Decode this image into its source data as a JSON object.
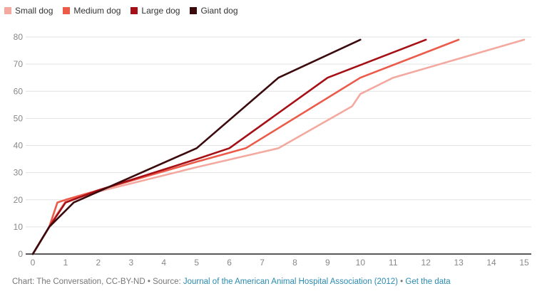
{
  "chart_data": {
    "type": "line",
    "title": "",
    "xlabel": "",
    "ylabel": "",
    "xlim": [
      0,
      15
    ],
    "ylim": [
      0,
      80
    ],
    "x_ticks": [
      0,
      1,
      2,
      3,
      4,
      5,
      6,
      7,
      8,
      9,
      10,
      11,
      12,
      13,
      14,
      15
    ],
    "y_ticks": [
      0,
      10,
      20,
      30,
      40,
      50,
      60,
      70,
      80
    ],
    "grid": "horizontal",
    "legend_position": "top-left",
    "series": [
      {
        "name": "Small dog",
        "color": "#f4a9a0",
        "points": [
          [
            0,
            0
          ],
          [
            0.5,
            10
          ],
          [
            0.75,
            15
          ],
          [
            1,
            19.5
          ],
          [
            2,
            23
          ],
          [
            5,
            32
          ],
          [
            7.5,
            39
          ],
          [
            9.75,
            54.5
          ],
          [
            10,
            59
          ],
          [
            11,
            65
          ],
          [
            15,
            79
          ]
        ]
      },
      {
        "name": "Medium dog",
        "color": "#ec5a4a",
        "points": [
          [
            0,
            0
          ],
          [
            0.5,
            10
          ],
          [
            0.75,
            19
          ],
          [
            1,
            20
          ],
          [
            2,
            23.5
          ],
          [
            5,
            34
          ],
          [
            6.5,
            39
          ],
          [
            10,
            65
          ],
          [
            13,
            79
          ]
        ]
      },
      {
        "name": "Large dog",
        "color": "#a50f15",
        "points": [
          [
            0,
            0
          ],
          [
            0.5,
            10
          ],
          [
            1,
            19
          ],
          [
            2,
            23.5
          ],
          [
            5,
            35
          ],
          [
            6,
            39
          ],
          [
            9,
            65
          ],
          [
            12,
            79
          ]
        ]
      },
      {
        "name": "Giant dog",
        "color": "#3b0a0c",
        "points": [
          [
            0,
            0
          ],
          [
            0.5,
            10
          ],
          [
            1.25,
            19
          ],
          [
            2,
            23
          ],
          [
            5,
            39
          ],
          [
            7.5,
            65
          ],
          [
            10,
            79
          ]
        ]
      }
    ]
  },
  "footer": {
    "credit": "Chart: The Conversation, CC-BY-ND",
    "separator": " • ",
    "source_prefix": "Source: ",
    "source_link": "Journal of the American Animal Hospital Association (2012)",
    "data_link": "Get the data"
  }
}
